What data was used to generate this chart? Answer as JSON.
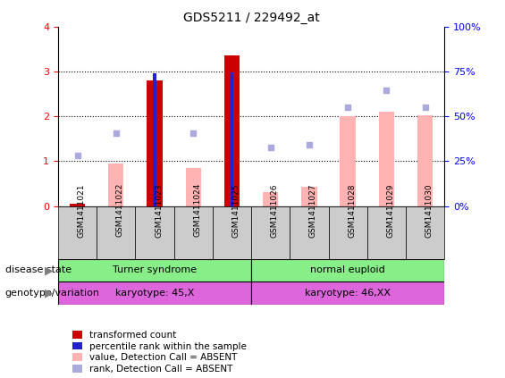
{
  "title": "GDS5211 / 229492_at",
  "samples": [
    "GSM1411021",
    "GSM1411022",
    "GSM1411023",
    "GSM1411024",
    "GSM1411025",
    "GSM1411026",
    "GSM1411027",
    "GSM1411028",
    "GSM1411029",
    "GSM1411030"
  ],
  "transformed_count": [
    0.05,
    0.0,
    2.8,
    0.0,
    3.35,
    0.0,
    0.0,
    0.0,
    0.0,
    0.0
  ],
  "percentile_rank": [
    0.0,
    0.0,
    2.95,
    0.0,
    2.97,
    0.0,
    0.0,
    0.0,
    0.0,
    0.0
  ],
  "value_absent": [
    0.05,
    0.95,
    0.0,
    0.85,
    0.0,
    0.3,
    0.42,
    2.0,
    2.1,
    2.02
  ],
  "rank_absent": [
    1.12,
    1.62,
    0.0,
    1.62,
    0.0,
    1.3,
    1.37,
    2.2,
    2.57,
    2.2
  ],
  "ylim": [
    0,
    4
  ],
  "yticks_left": [
    0,
    1,
    2,
    3,
    4
  ],
  "yticks_right": [
    0,
    25,
    50,
    75,
    100
  ],
  "disease_state_labels": [
    "Turner syndrome",
    "normal euploid"
  ],
  "disease_state_color": "#88ee88",
  "genotype_labels": [
    "karyotype: 45,X",
    "karyotype: 46,XX"
  ],
  "genotype_color": "#dd66dd",
  "bar_color_red": "#cc0000",
  "bar_color_blue": "#2222cc",
  "bar_color_pink": "#ffb3b3",
  "bar_color_lightblue": "#aaaadd",
  "col_bg_color": "#cccccc",
  "legend_labels": [
    "transformed count",
    "percentile rank within the sample",
    "value, Detection Call = ABSENT",
    "rank, Detection Call = ABSENT"
  ],
  "legend_colors": [
    "#cc0000",
    "#2222cc",
    "#ffb3b3",
    "#aaaadd"
  ]
}
